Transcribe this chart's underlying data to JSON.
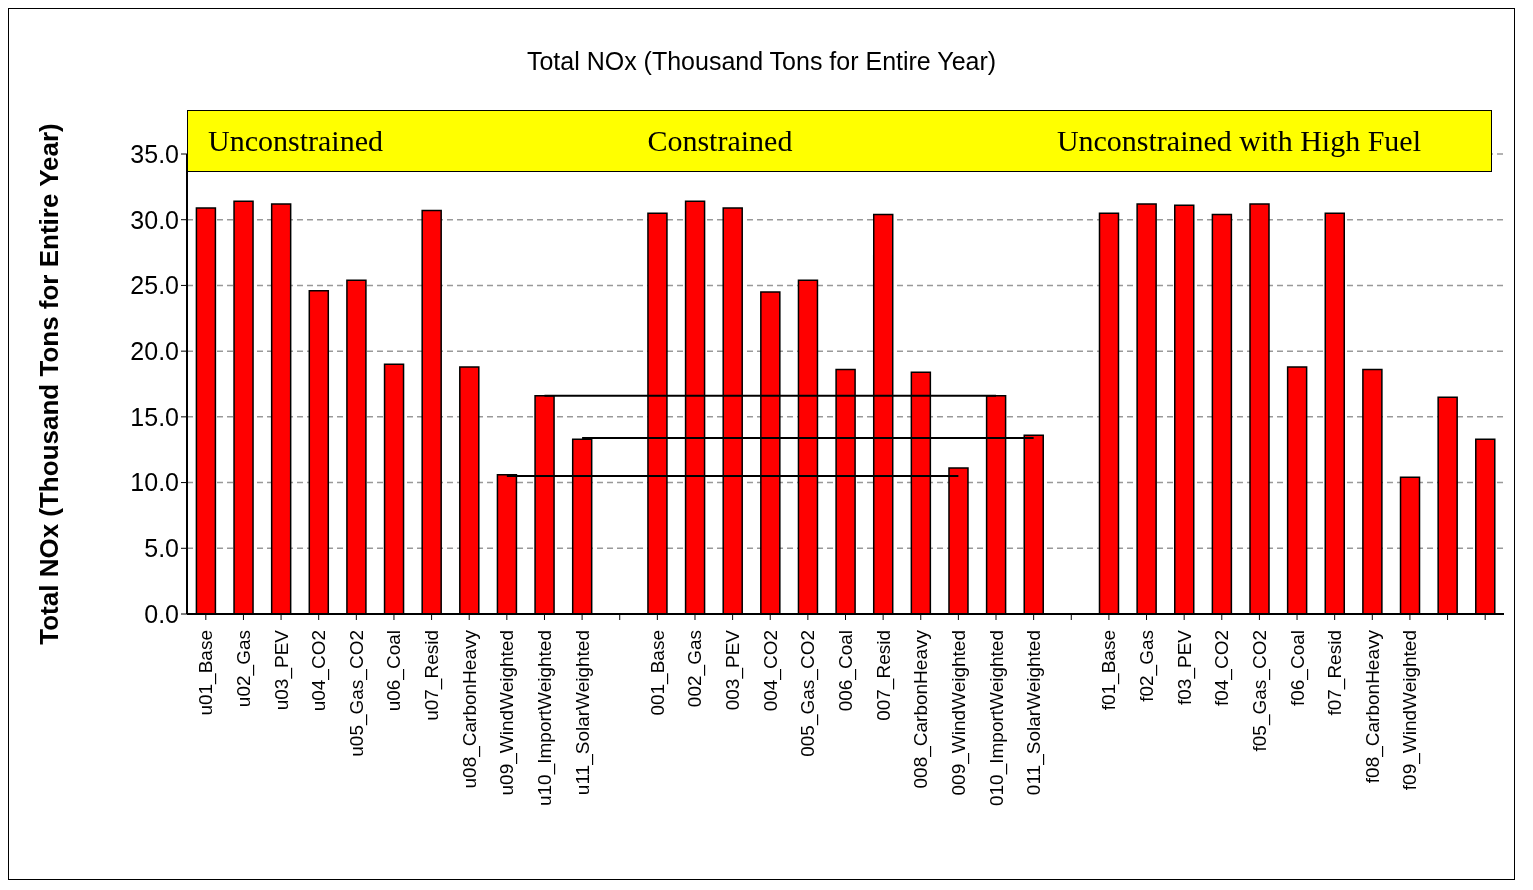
{
  "chart_data": {
    "type": "bar",
    "title": "Total NOx  (Thousand  Tons  for Entire Year)",
    "ylabel": "Total NOx (Thousand Tons for Entire Year)",
    "annotations": [
      "Unconstrained",
      "Constrained",
      "Unconstrained with High Fuel"
    ],
    "categories": [
      "u01_Base",
      "u02_Gas",
      "u03_PEV",
      "u04_CO2",
      "u05_Gas_CO2",
      "u06_Coal",
      "u07_Resid",
      "u08_CarbonHeavy",
      "u09_WindWeighted",
      "u10_ImportWeighted",
      "u11_SolarWeighted",
      null,
      "001_Base",
      "002_Gas",
      "003_PEV",
      "004_CO2",
      "005_Gas_CO2",
      "006_Coal",
      "007_Resid",
      "008_CarbonHeavy",
      "009_WindWeighted",
      "010_ImportWeighted",
      "011_SolarWeighted",
      null,
      "f01_Base",
      "f02_Gas",
      "f03_PEV",
      "f04_CO2",
      "f05_Gas_CO2",
      "f06_Coal",
      "f07_Resid",
      "f08_CarbonHeavy",
      "f09_WindWeighted",
      null,
      null
    ],
    "series": [
      {
        "color": "#ff0000",
        "values": [
          30.9,
          31.4,
          31.2,
          24.6,
          25.4,
          19.0,
          30.7,
          18.8,
          10.6,
          16.6,
          13.3,
          null,
          30.5,
          31.4,
          30.9,
          24.5,
          25.4,
          18.6,
          30.4,
          18.4,
          11.1,
          16.6,
          13.6,
          null,
          30.5,
          31.2,
          31.1,
          30.4,
          31.2,
          18.8,
          30.5,
          18.6,
          10.4,
          16.5,
          13.3
        ]
      },
      {
        "type": "line",
        "color": "#000000",
        "values": [
          null,
          null,
          null,
          null,
          null,
          null,
          null,
          null,
          null,
          16.6,
          null,
          null,
          null,
          null,
          null,
          null,
          null,
          null,
          null,
          null,
          null,
          16.6,
          null,
          null,
          null,
          null,
          null,
          null,
          null,
          null,
          null,
          null,
          null,
          null,
          null
        ]
      },
      {
        "type": "line",
        "color": "#000000",
        "values": [
          null,
          null,
          null,
          null,
          null,
          null,
          null,
          null,
          null,
          null,
          13.4,
          null,
          null,
          null,
          null,
          null,
          null,
          null,
          null,
          null,
          null,
          null,
          13.4,
          null,
          null,
          null,
          null,
          null,
          null,
          null,
          null,
          null,
          null,
          null,
          null
        ]
      },
      {
        "type": "line",
        "color": "#000000",
        "values": [
          null,
          null,
          null,
          null,
          null,
          null,
          null,
          null,
          10.5,
          null,
          null,
          null,
          null,
          null,
          null,
          null,
          null,
          null,
          null,
          null,
          10.5,
          null,
          null,
          null,
          null,
          null,
          null,
          null,
          null,
          null,
          null,
          null,
          null,
          null,
          null
        ]
      }
    ],
    "marker": "none",
    "line_style": "solid",
    "ylim": [
      0,
      35
    ],
    "yticks": [
      {
        "value": 0,
        "label": "0.0"
      },
      {
        "value": 5,
        "label": "5.0"
      },
      {
        "value": 10,
        "label": "10.0"
      },
      {
        "value": 15,
        "label": "15.0"
      },
      {
        "value": 20,
        "label": "20.0"
      },
      {
        "value": 25,
        "label": "25.0"
      },
      {
        "value": 30,
        "label": "30.0"
      },
      {
        "value": 35,
        "label": "35.0"
      }
    ],
    "grid": "y",
    "legend": false
  }
}
